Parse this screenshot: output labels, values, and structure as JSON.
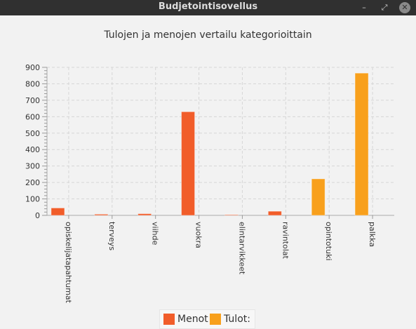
{
  "window": {
    "title": "Budjetointisovellus",
    "min_icon": "minimize-icon",
    "max_icon": "maximize-icon",
    "close_icon": "close-icon"
  },
  "chart_data": {
    "type": "bar",
    "title": "Tulojen ja menojen vertailu kategorioittain",
    "xlabel": "",
    "ylabel": "",
    "ylim": [
      0,
      900
    ],
    "yticks": [
      "0",
      "100",
      "200",
      "300",
      "400",
      "500",
      "600",
      "700",
      "800",
      "900"
    ],
    "grid": true,
    "legend_position": "bottom",
    "categories": [
      "opiskelijatapahtumat",
      "terveys",
      "viihde",
      "vuokra",
      "elintarvikkeet",
      "ravintolat",
      "opintotuki",
      "palkka"
    ],
    "series": [
      {
        "name": "Menot",
        "color": "#f15d2a",
        "values": [
          45,
          7,
          10,
          630,
          4,
          25,
          null,
          null
        ]
      },
      {
        "name": "Tulot:",
        "color": "#f8a01c",
        "values": [
          null,
          null,
          null,
          null,
          null,
          null,
          222,
          865
        ]
      }
    ]
  }
}
